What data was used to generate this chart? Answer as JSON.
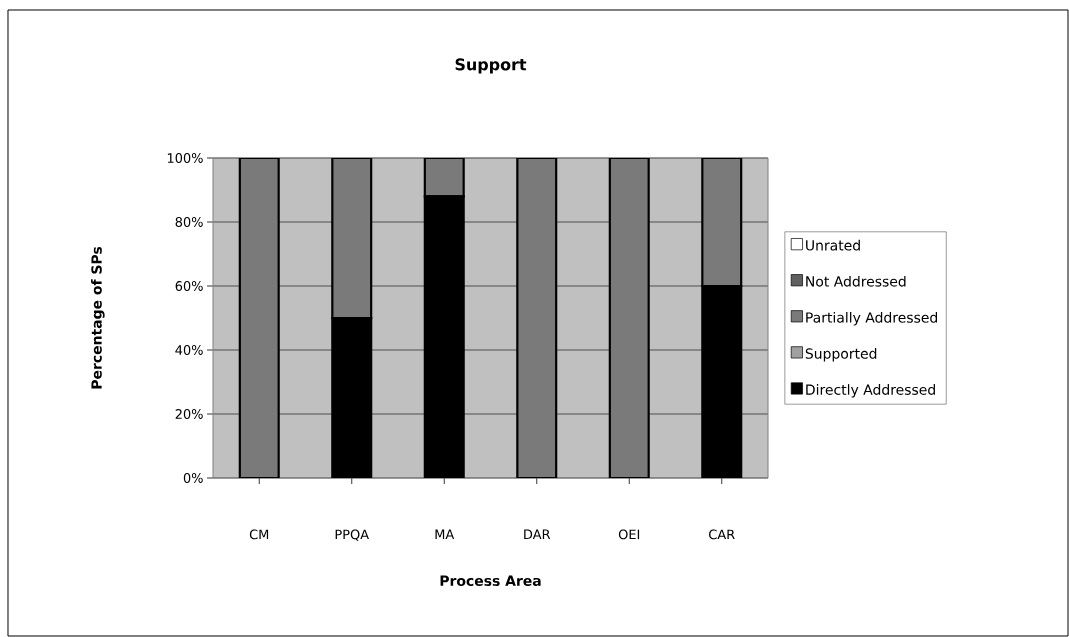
{
  "chart_data": {
    "type": "bar",
    "stacked": true,
    "title": "Support",
    "xlabel": "Process Area",
    "ylabel": "Percentage of SPs",
    "categories": [
      "CM",
      "PPQA",
      "MA",
      "DAR",
      "OEI",
      "CAR"
    ],
    "series": [
      {
        "name": "Directly Addressed",
        "color": "#000000",
        "values": [
          0,
          50,
          88,
          0,
          0,
          60
        ]
      },
      {
        "name": "Supported",
        "color": "#a0a0a0",
        "values": [
          0,
          0,
          0,
          0,
          0,
          0
        ]
      },
      {
        "name": "Partially Addressed",
        "color": "#7a7a7a",
        "values": [
          100,
          50,
          12,
          100,
          100,
          40
        ]
      },
      {
        "name": "Not Addressed",
        "color": "#606060",
        "values": [
          0,
          0,
          0,
          0,
          0,
          0
        ]
      },
      {
        "name": "Unrated",
        "color": "#ffffff",
        "values": [
          0,
          0,
          0,
          0,
          0,
          0
        ]
      }
    ],
    "ylim": [
      0,
      100
    ],
    "yticks": [
      {
        "value": 0,
        "label": "0%"
      },
      {
        "value": 20,
        "label": "20%"
      },
      {
        "value": 40,
        "label": "40%"
      },
      {
        "value": 60,
        "label": "60%"
      },
      {
        "value": 80,
        "label": "80%"
      },
      {
        "value": 100,
        "label": "100%"
      }
    ],
    "grid": "y",
    "legend": "right"
  }
}
